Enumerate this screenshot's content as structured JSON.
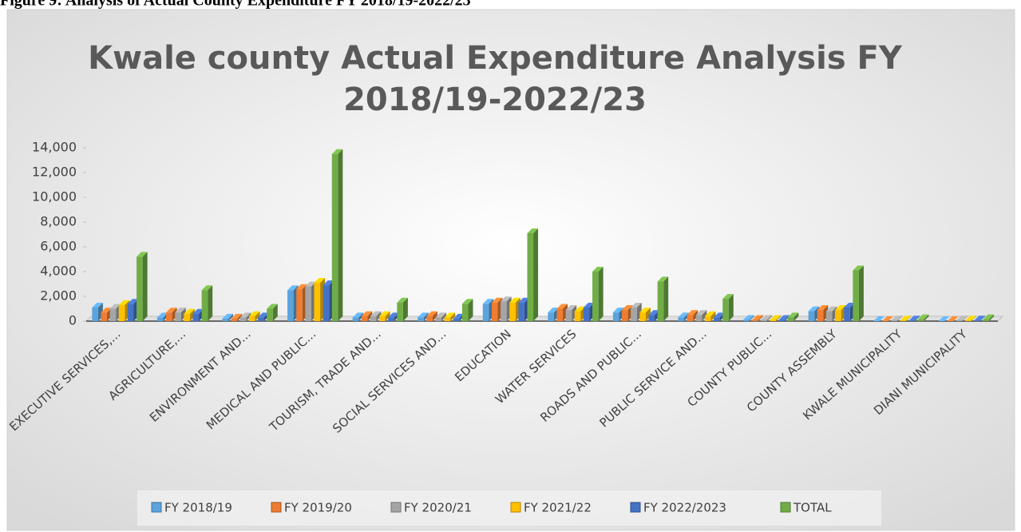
{
  "figure_caption": "Figure 9: Analysis of Actual County Expenditure FY 2018/19-2022/23",
  "chart_data": {
    "type": "bar3d",
    "title": [
      "Kwale county Actual Expenditure Analysis FY",
      "2018/19-2022/23"
    ],
    "categories": [
      "EXECUTIVE SERVICES,...",
      "AGRICULTURE,...",
      "ENVIRONMENT AND...",
      "MEDICAL AND PUBLIC...",
      "TOURISM, TRADE AND...",
      "SOCIAL SERVICES AND...",
      "EDUCATION",
      "WATER SERVICES",
      "ROADS AND PUBLIC...",
      "PUBLIC SERVICE AND...",
      "COUNTY PUBLIC...",
      "COUNTY ASSEMBLY",
      "KWALE MUNICIPALITY",
      "DIANI MUNICIPALITY"
    ],
    "series": [
      {
        "name": "FY 2018/19",
        "color": "#5ba3dc",
        "values": [
          1100,
          300,
          200,
          2500,
          300,
          300,
          1400,
          700,
          700,
          300,
          100,
          800,
          0,
          0
        ]
      },
      {
        "name": "FY 2019/20",
        "color": "#ed7d31",
        "values": [
          700,
          700,
          200,
          2600,
          400,
          400,
          1500,
          1000,
          900,
          500,
          100,
          900,
          0,
          0
        ]
      },
      {
        "name": "FY 2020/21",
        "color": "#a5a5a5",
        "values": [
          1000,
          700,
          300,
          2800,
          400,
          300,
          1600,
          900,
          1100,
          500,
          100,
          800,
          50,
          50
        ]
      },
      {
        "name": "FY 2021/22",
        "color": "#ffc000",
        "values": [
          1300,
          600,
          400,
          3100,
          400,
          300,
          1500,
          800,
          700,
          400,
          100,
          900,
          50,
          50
        ]
      },
      {
        "name": "FY 2022/2023",
        "color": "#4472c4",
        "values": [
          1400,
          600,
          300,
          2900,
          300,
          200,
          1500,
          1100,
          500,
          300,
          100,
          1100,
          50,
          50
        ]
      },
      {
        "name": "TOTAL",
        "color": "#70ad47",
        "values": [
          5200,
          2500,
          1000,
          13500,
          1500,
          1400,
          7100,
          4000,
          3200,
          1800,
          300,
          4100,
          150,
          150
        ]
      }
    ],
    "ylim": [
      0,
      14000
    ],
    "yticks": [
      0,
      {
        "value": 2000,
        "label": "2,000"
      },
      {
        "value": 4000,
        "label": "4,000"
      },
      {
        "value": 6000,
        "label": "6,000"
      },
      {
        "value": 8000,
        "label": "8,000"
      },
      {
        "value": 10000,
        "label": "10,000"
      },
      {
        "value": 12000,
        "label": "12,000"
      },
      {
        "value": 14000,
        "label": "14,000"
      }
    ],
    "legend": "bottom"
  }
}
